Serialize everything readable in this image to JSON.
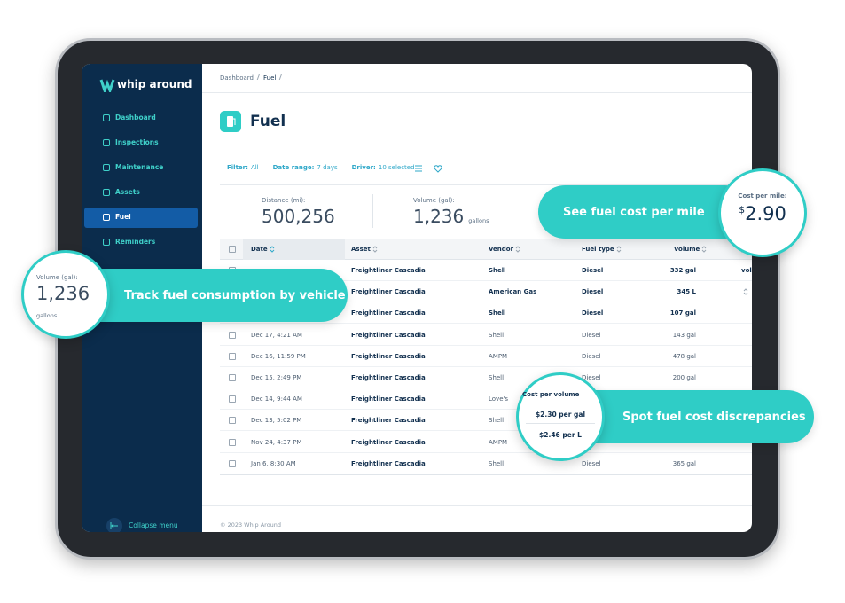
{
  "sidebar": {
    "logo": "whip around",
    "nav": [
      "Dashboard",
      "Inspections",
      "Maintenance",
      "Assets",
      "Fuel",
      "Reminders"
    ],
    "active": 4,
    "collapse": "Collapse menu"
  },
  "breadcrumb": [
    "Dashboard",
    "Fuel"
  ],
  "page_title": "Fuel",
  "filters": [
    {
      "label": "Filter:",
      "value": "All"
    },
    {
      "label": "Date range:",
      "value": "7 days"
    },
    {
      "label": "Driver:",
      "value": "10 selected"
    }
  ],
  "stats": [
    {
      "label": "Distance (mi):",
      "value": "500,256"
    },
    {
      "label": "Volume (gal):",
      "value": "1,236",
      "unit": "gallons"
    }
  ],
  "table": {
    "columns": [
      "Date",
      "Asset",
      "Vendor",
      "Fuel type",
      "Volume",
      "per volume"
    ],
    "rows": [
      [
        null,
        "Freightliner Cascadia",
        "Shell",
        "Diesel",
        "332 gal"
      ],
      [
        null,
        "Freightliner Cascadia",
        "American Gas",
        "Diesel",
        "345 L"
      ],
      [
        null,
        "Freightliner Cascadia",
        "Shell",
        "Diesel",
        "107 gal"
      ],
      [
        "Dec 17, 4:21 AM",
        "Freightliner Cascadia",
        "Shell",
        "Diesel",
        "143 gal"
      ],
      [
        "Dec 16, 11:59 PM",
        "Freightliner Cascadia",
        "AMPM",
        "Diesel",
        "478 gal"
      ],
      [
        "Dec 15, 2:49 PM",
        "Freightliner Cascadia",
        "Shell",
        "Diesel",
        "200 gal"
      ],
      [
        "Dec 14, 9:44 AM",
        "Freightliner Cascadia",
        "Love's",
        null,
        null
      ],
      [
        "Dec 13, 5:02 PM",
        "Freightliner Cascadia",
        "Shell",
        null,
        null
      ],
      [
        "Nov 24, 4:37 PM",
        "Freightliner Cascadia",
        "AMPM",
        null,
        null
      ],
      [
        "Jan 6, 8:30 AM",
        "Freightliner Cascadia",
        "Shell",
        "Diesel",
        "365 gal"
      ]
    ]
  },
  "footer": "© 2023 Whip Around",
  "callouts": {
    "cost_per_mile": {
      "label": "Cost per mile:",
      "currency": "$",
      "value": "2.90",
      "text": "See fuel cost per mile"
    },
    "volume": {
      "label": "Volume (gal):",
      "value": "1,236",
      "unit": "gallons",
      "text": "Track fuel consumption by vehicle"
    },
    "cost_per_volume": {
      "label": "Cost per volume",
      "values": [
        "$2.30 per gal",
        "$2.46 per L"
      ],
      "text": "Spot fuel cost discrepancies"
    }
  }
}
